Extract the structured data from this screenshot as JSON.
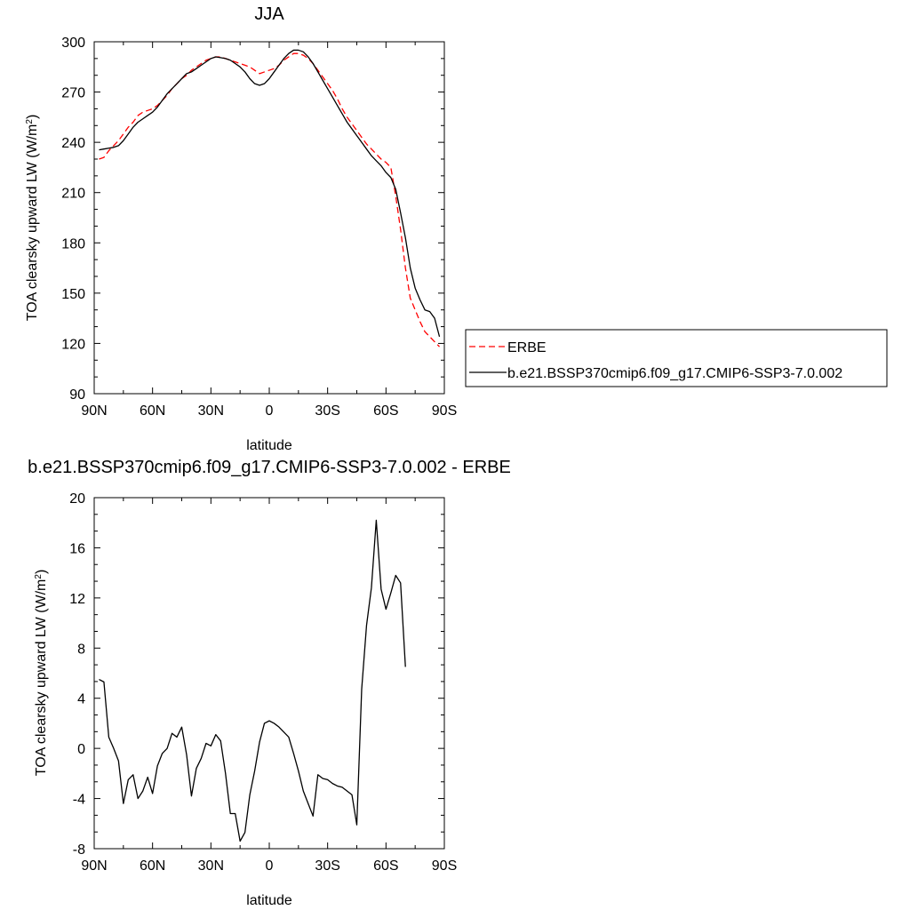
{
  "chart_data": [
    {
      "type": "line",
      "title": "JJA",
      "xlabel": "latitude",
      "ylabel": "TOA clearsky upward LW (W/m",
      "ylabel_sup": "2",
      "ylabel_close": ")",
      "xlim": [
        90,
        -90
      ],
      "ylim": [
        90,
        300
      ],
      "x_ticks": [
        {
          "value": 90,
          "label": "90N"
        },
        {
          "value": 60,
          "label": "60N"
        },
        {
          "value": 30,
          "label": "30N"
        },
        {
          "value": 0,
          "label": "0"
        },
        {
          "value": -30,
          "label": "30S"
        },
        {
          "value": -60,
          "label": "60S"
        },
        {
          "value": -90,
          "label": "90S"
        }
      ],
      "y_ticks": [
        {
          "value": 90,
          "label": "90"
        },
        {
          "value": 120,
          "label": "120"
        },
        {
          "value": 150,
          "label": "150"
        },
        {
          "value": 180,
          "label": "180"
        },
        {
          "value": 210,
          "label": "210"
        },
        {
          "value": 240,
          "label": "240"
        },
        {
          "value": 270,
          "label": "270"
        },
        {
          "value": 300,
          "label": "300"
        }
      ],
      "legend_position": "right",
      "series": [
        {
          "name": "ERBE",
          "color": "#ff0000",
          "dash": "dashed",
          "points": [
            [
              87.5,
              230
            ],
            [
              85,
              231
            ],
            [
              82.5,
              235
            ],
            [
              80,
              238
            ],
            [
              77.5,
              241
            ],
            [
              75,
              245
            ],
            [
              72.5,
              249
            ],
            [
              70,
              252
            ],
            [
              67.5,
              256
            ],
            [
              65,
              258
            ],
            [
              62.5,
              259
            ],
            [
              60,
              260
            ],
            [
              57.5,
              262
            ],
            [
              55,
              265
            ],
            [
              52.5,
              268
            ],
            [
              50,
              272
            ],
            [
              47.5,
              275
            ],
            [
              45,
              278
            ],
            [
              42.5,
              280
            ],
            [
              40,
              283
            ],
            [
              37.5,
              285
            ],
            [
              35,
              287
            ],
            [
              32.5,
              289
            ],
            [
              30,
              290
            ],
            [
              27.5,
              291
            ],
            [
              25,
              291
            ],
            [
              22.5,
              290
            ],
            [
              20,
              289
            ],
            [
              17.5,
              288
            ],
            [
              15,
              287
            ],
            [
              12.5,
              286
            ],
            [
              10,
              285
            ],
            [
              7.5,
              283
            ],
            [
              5,
              281
            ],
            [
              2.5,
              282
            ],
            [
              0,
              283
            ],
            [
              -2.5,
              284
            ],
            [
              -5,
              286
            ],
            [
              -7.5,
              289
            ],
            [
              -10,
              291
            ],
            [
              -12.5,
              293
            ],
            [
              -15,
              293
            ],
            [
              -17.5,
              292
            ],
            [
              -20,
              290
            ],
            [
              -22.5,
              287
            ],
            [
              -25,
              283
            ],
            [
              -27.5,
              279
            ],
            [
              -30,
              275
            ],
            [
              -32.5,
              271
            ],
            [
              -35,
              266
            ],
            [
              -37.5,
              260
            ],
            [
              -40,
              255
            ],
            [
              -42.5,
              251
            ],
            [
              -45,
              247
            ],
            [
              -47.5,
              243
            ],
            [
              -50,
              239
            ],
            [
              -52.5,
              236
            ],
            [
              -55,
              233
            ],
            [
              -57.5,
              230
            ],
            [
              -60,
              228
            ],
            [
              -62.5,
              225
            ],
            [
              -65,
              208
            ],
            [
              -67.5,
              188
            ],
            [
              -70,
              165
            ],
            [
              -72.5,
              147
            ],
            [
              -75,
              140
            ],
            [
              -77.5,
              133
            ],
            [
              -80,
              127
            ],
            [
              -82.5,
              124
            ],
            [
              -85,
              121
            ],
            [
              -87.5,
              118
            ]
          ]
        },
        {
          "name": "b.e21.BSSP370cmip6.f09_g17.CMIP6-SSP3-7.0.002",
          "color": "#000000",
          "dash": "solid",
          "points": [
            [
              87.5,
              235.5
            ],
            [
              85,
              236
            ],
            [
              82.5,
              236.5
            ],
            [
              80,
              237
            ],
            [
              77.5,
              238
            ],
            [
              75,
              241
            ],
            [
              72.5,
              245
            ],
            [
              70,
              249
            ],
            [
              67.5,
              252
            ],
            [
              65,
              254
            ],
            [
              62.5,
              256
            ],
            [
              60,
              258
            ],
            [
              57.5,
              261
            ],
            [
              55,
              265
            ],
            [
              52.5,
              269
            ],
            [
              50,
              272
            ],
            [
              47.5,
              275
            ],
            [
              45,
              278
            ],
            [
              42.5,
              281
            ],
            [
              40,
              282
            ],
            [
              37.5,
              284
            ],
            [
              35,
              286
            ],
            [
              32.5,
              288
            ],
            [
              30,
              290
            ],
            [
              27.5,
              291
            ],
            [
              25,
              290.5
            ],
            [
              22.5,
              290
            ],
            [
              20,
              289
            ],
            [
              17.5,
              287
            ],
            [
              15,
              285
            ],
            [
              12.5,
              282
            ],
            [
              10,
              278
            ],
            [
              7.5,
              275
            ],
            [
              5,
              274
            ],
            [
              2.5,
              275
            ],
            [
              0,
              278
            ],
            [
              -2.5,
              282
            ],
            [
              -5,
              286
            ],
            [
              -7.5,
              290
            ],
            [
              -10,
              293
            ],
            [
              -12.5,
              295
            ],
            [
              -15,
              295
            ],
            [
              -17.5,
              294
            ],
            [
              -20,
              291
            ],
            [
              -22.5,
              287
            ],
            [
              -25,
              282
            ],
            [
              -27.5,
              277
            ],
            [
              -30,
              272
            ],
            [
              -32.5,
              267
            ],
            [
              -35,
              262
            ],
            [
              -37.5,
              257
            ],
            [
              -40,
              252
            ],
            [
              -42.5,
              248
            ],
            [
              -45,
              244
            ],
            [
              -47.5,
              240
            ],
            [
              -50,
              236
            ],
            [
              -52.5,
              232
            ],
            [
              -55,
              229
            ],
            [
              -57.5,
              226
            ],
            [
              -60,
              222
            ],
            [
              -62.5,
              219
            ],
            [
              -65,
              212
            ],
            [
              -67.5,
              198
            ],
            [
              -70,
              183
            ],
            [
              -72.5,
              165
            ],
            [
              -75,
              153
            ],
            [
              -77.5,
              146
            ],
            [
              -80,
              140
            ],
            [
              -82.5,
              139
            ],
            [
              -85,
              135
            ],
            [
              -87.5,
              124
            ]
          ]
        }
      ]
    },
    {
      "type": "line",
      "title": "b.e21.BSSP370cmip6.f09_g17.CMIP6-SSP3-7.0.002 - ERBE",
      "xlabel": "latitude",
      "ylabel": "TOA clearsky upward LW (W/m",
      "ylabel_sup": "2",
      "ylabel_close": ")",
      "xlim": [
        90,
        -90
      ],
      "ylim": [
        -8,
        20
      ],
      "x_ticks": [
        {
          "value": 90,
          "label": "90N"
        },
        {
          "value": 60,
          "label": "60N"
        },
        {
          "value": 30,
          "label": "30N"
        },
        {
          "value": 0,
          "label": "0"
        },
        {
          "value": -30,
          "label": "30S"
        },
        {
          "value": -60,
          "label": "60S"
        },
        {
          "value": -90,
          "label": "90S"
        }
      ],
      "y_ticks": [
        {
          "value": -8,
          "label": "-8"
        },
        {
          "value": -4,
          "label": "-4"
        },
        {
          "value": 0,
          "label": "0"
        },
        {
          "value": 4,
          "label": "4"
        },
        {
          "value": 8,
          "label": "8"
        },
        {
          "value": 12,
          "label": "12"
        },
        {
          "value": 16,
          "label": "16"
        },
        {
          "value": 20,
          "label": "20"
        }
      ],
      "series": [
        {
          "color": "#000000",
          "dash": "solid",
          "points": [
            [
              87.5,
              5.5
            ],
            [
              85,
              5.3
            ],
            [
              82.5,
              0.9
            ],
            [
              80,
              0
            ],
            [
              77.5,
              -1
            ],
            [
              75,
              -4.4
            ],
            [
              72.5,
              -2.5
            ],
            [
              70,
              -2.1
            ],
            [
              67.5,
              -4
            ],
            [
              65,
              -3.4
            ],
            [
              62.5,
              -2.3
            ],
            [
              60,
              -3.6
            ],
            [
              57.5,
              -1.4
            ],
            [
              55,
              -0.4
            ],
            [
              52.5,
              0
            ],
            [
              50,
              1.2
            ],
            [
              47.5,
              0.9
            ],
            [
              45,
              1.7
            ],
            [
              42.5,
              -0.5
            ],
            [
              40,
              -3.8
            ],
            [
              37.5,
              -1.6
            ],
            [
              35,
              -0.8
            ],
            [
              32.5,
              0.4
            ],
            [
              30,
              0.2
            ],
            [
              27.5,
              1.1
            ],
            [
              25,
              0.6
            ],
            [
              22.5,
              -2
            ],
            [
              20,
              -5.2
            ],
            [
              17.5,
              -5.2
            ],
            [
              15,
              -7.4
            ],
            [
              12.5,
              -6.7
            ],
            [
              10,
              -3.7
            ],
            [
              7.5,
              -1.8
            ],
            [
              5,
              0.5
            ],
            [
              2.5,
              2
            ],
            [
              0,
              2.2
            ],
            [
              -2.5,
              2
            ],
            [
              -5,
              1.7
            ],
            [
              -7.5,
              1.3
            ],
            [
              -10,
              0.9
            ],
            [
              -12.5,
              -0.4
            ],
            [
              -15,
              -1.8
            ],
            [
              -17.5,
              -3.4
            ],
            [
              -20,
              -4.4
            ],
            [
              -22.5,
              -5.4
            ],
            [
              -25,
              -2.1
            ],
            [
              -27.5,
              -2.4
            ],
            [
              -30,
              -2.5
            ],
            [
              -32.5,
              -2.8
            ],
            [
              -35,
              -3
            ],
            [
              -37.5,
              -3.1
            ],
            [
              -40,
              -3.4
            ],
            [
              -42.5,
              -3.7
            ],
            [
              -45,
              -6.1
            ],
            [
              -47.5,
              4.7
            ],
            [
              -50,
              9.8
            ],
            [
              -52.5,
              12.8
            ],
            [
              -55,
              18.2
            ],
            [
              -57.5,
              12.7
            ],
            [
              -60,
              11.1
            ],
            [
              -62.5,
              12.4
            ],
            [
              -65,
              13.8
            ],
            [
              -67.5,
              13.2
            ],
            [
              -70,
              6.5
            ]
          ]
        }
      ]
    }
  ]
}
